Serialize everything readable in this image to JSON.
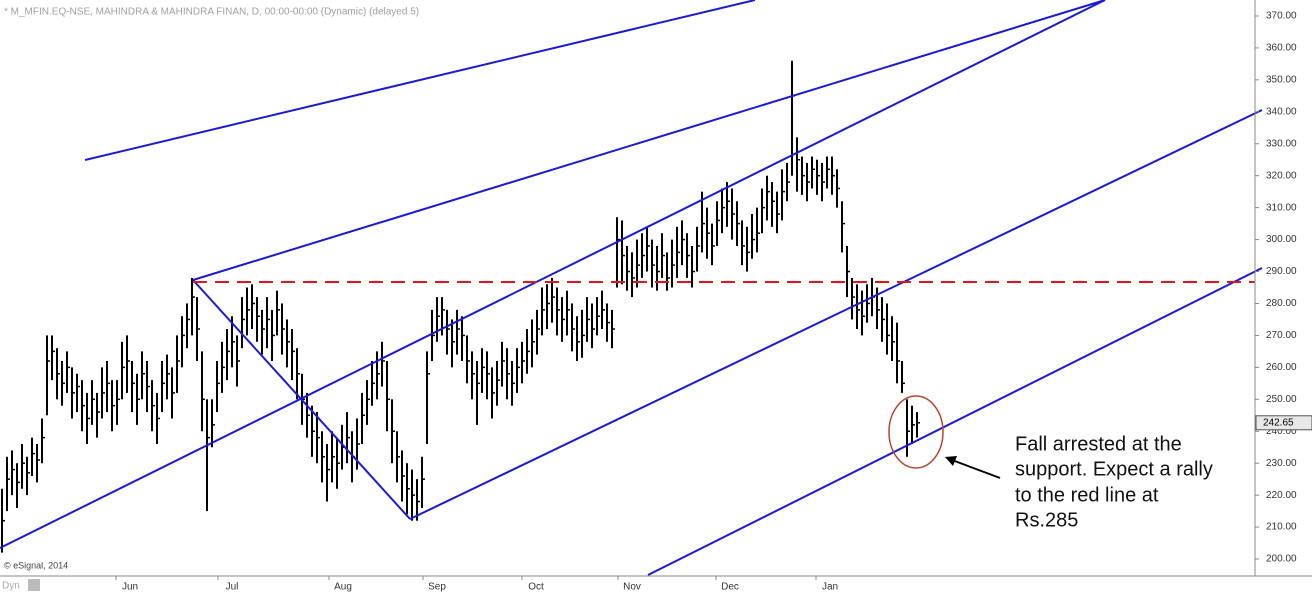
{
  "chart_data": {
    "type": "ohlc",
    "title": "* M_MFIN.EQ-NSE, MAHINDRA & MAHINDRA FINAN, D, 00:00-00:00 (Dynamic) (delayed 5)",
    "ylim": [
      195,
      375
    ],
    "yticks": [
      {
        "value": 200,
        "label": "200.00"
      },
      {
        "value": 210,
        "label": "210.00"
      },
      {
        "value": 220,
        "label": "220.00"
      },
      {
        "value": 230,
        "label": "230.00"
      },
      {
        "value": 240,
        "label": "240.00"
      },
      {
        "value": 250,
        "label": "250.00"
      },
      {
        "value": 260,
        "label": "260.00"
      },
      {
        "value": 270,
        "label": "270.00"
      },
      {
        "value": 280,
        "label": "280.00"
      },
      {
        "value": 290,
        "label": "290.00"
      },
      {
        "value": 300,
        "label": "300.00"
      },
      {
        "value": 310,
        "label": "310.00"
      },
      {
        "value": 320,
        "label": "320.00"
      },
      {
        "value": 330,
        "label": "330.00"
      },
      {
        "value": 340,
        "label": "340.00"
      },
      {
        "value": 350,
        "label": "350.00"
      },
      {
        "value": 360,
        "label": "360.00"
      },
      {
        "value": 370,
        "label": "370.00"
      }
    ],
    "x_labels": [
      "Jun",
      "Jul",
      "Aug",
      "Sep",
      "Oct",
      "Nov",
      "Dec",
      "Jan"
    ],
    "series": [
      {
        "color": "#000000",
        "high": [
          222,
          232,
          234,
          230,
          236,
          232,
          238,
          236,
          244,
          270,
          270,
          266,
          262,
          265,
          260,
          258,
          256,
          252,
          256,
          252,
          260,
          262,
          256,
          256,
          268,
          270,
          262,
          258,
          265,
          262,
          256,
          252,
          262,
          264,
          260,
          270,
          276,
          280,
          288,
          282,
          265,
          250,
          250,
          262,
          268,
          272,
          276,
          270,
          282,
          285,
          286,
          282,
          278,
          282,
          278,
          284,
          280,
          275,
          272,
          266,
          258,
          252,
          248,
          246,
          240,
          236,
          240,
          238,
          242,
          246,
          240,
          244,
          252,
          256,
          262,
          265,
          268,
          262,
          250,
          240,
          234,
          230,
          228,
          225,
          232,
          265,
          278,
          282,
          282,
          278,
          275,
          278,
          276,
          270,
          265,
          262,
          266,
          265,
          260,
          262,
          268,
          266,
          262,
          266,
          268,
          272,
          275,
          278,
          285,
          286,
          288,
          285,
          282,
          284,
          280,
          276,
          278,
          282,
          280,
          282,
          284,
          280,
          278,
          307,
          306,
          298,
          296,
          300,
          302,
          304,
          300,
          298,
          302,
          296,
          300,
          304,
          306,
          302,
          298,
          304,
          315,
          310,
          305,
          312,
          316,
          318,
          316,
          312,
          306,
          304,
          308,
          310,
          316,
          320,
          318,
          315,
          322,
          324,
          356,
          332,
          326,
          324,
          326,
          325,
          324,
          326,
          326,
          322,
          312,
          298,
          288,
          286,
          284,
          286,
          288,
          285,
          282,
          280,
          276,
          274,
          262,
          250,
          248,
          246
        ],
        "low": [
          202,
          215,
          220,
          216,
          222,
          220,
          226,
          224,
          230,
          245,
          256,
          250,
          248,
          252,
          244,
          246,
          240,
          236,
          242,
          238,
          244,
          246,
          240,
          242,
          250,
          252,
          246,
          242,
          250,
          246,
          240,
          236,
          246,
          250,
          244,
          252,
          260,
          266,
          270,
          262,
          240,
          215,
          235,
          246,
          252,
          256,
          260,
          254,
          266,
          270,
          272,
          268,
          264,
          266,
          262,
          270,
          264,
          260,
          256,
          250,
          242,
          238,
          232,
          230,
          224,
          218,
          224,
          222,
          228,
          230,
          224,
          228,
          236,
          242,
          248,
          250,
          254,
          240,
          230,
          224,
          218,
          214,
          212,
          212,
          216,
          236,
          262,
          268,
          270,
          264,
          260,
          264,
          262,
          255,
          250,
          242,
          252,
          250,
          244,
          248,
          254,
          250,
          248,
          252,
          255,
          258,
          260,
          264,
          270,
          272,
          274,
          270,
          268,
          270,
          265,
          262,
          263,
          268,
          266,
          270,
          272,
          268,
          266,
          285,
          286,
          284,
          282,
          285,
          288,
          290,
          285,
          284,
          288,
          284,
          285,
          288,
          292,
          288,
          285,
          290,
          296,
          294,
          292,
          298,
          302,
          304,
          300,
          298,
          292,
          290,
          294,
          296,
          302,
          306,
          304,
          302,
          306,
          312,
          320,
          315,
          314,
          312,
          316,
          314,
          312,
          316,
          314,
          310,
          296,
          282,
          275,
          272,
          270,
          274,
          276,
          272,
          268,
          264,
          262,
          255,
          252,
          232,
          236,
          238
        ],
        "close": [
          212,
          225,
          228,
          224,
          230,
          227,
          233,
          231,
          238,
          262,
          265,
          258,
          255,
          260,
          252,
          254,
          248,
          244,
          250,
          246,
          252,
          255,
          248,
          250,
          260,
          262,
          255,
          250,
          258,
          254,
          248,
          244,
          255,
          258,
          252,
          262,
          270,
          275,
          282,
          272,
          250,
          238,
          242,
          255,
          260,
          265,
          268,
          262,
          275,
          278,
          280,
          276,
          272,
          275,
          270,
          278,
          272,
          268,
          265,
          258,
          250,
          245,
          240,
          238,
          232,
          228,
          232,
          230,
          235,
          238,
          232,
          236,
          245,
          250,
          255,
          258,
          262,
          250,
          240,
          232,
          226,
          222,
          220,
          218,
          225,
          258,
          270,
          276,
          278,
          272,
          268,
          272,
          270,
          262,
          258,
          255,
          260,
          258,
          252,
          256,
          262,
          258,
          255,
          260,
          262,
          265,
          268,
          272,
          278,
          280,
          282,
          278,
          275,
          278,
          272,
          268,
          270,
          275,
          272,
          276,
          278,
          274,
          272,
          300,
          295,
          290,
          288,
          292,
          295,
          298,
          292,
          290,
          295,
          288,
          292,
          296,
          300,
          295,
          290,
          298,
          305,
          302,
          298,
          306,
          310,
          312,
          308,
          305,
          298,
          296,
          300,
          302,
          310,
          315,
          312,
          308,
          315,
          318,
          345,
          325,
          320,
          318,
          322,
          320,
          318,
          322,
          320,
          316,
          305,
          290,
          282,
          278,
          276,
          280,
          282,
          278,
          275,
          270,
          268,
          262,
          255,
          240,
          242,
          242.65
        ]
      }
    ],
    "last_price": 242.65,
    "annotation": [
      "Fall arrested at the",
      "support. Expect a rally",
      "to the red line at",
      "Rs.285"
    ],
    "credit": "© eSignal, 2014",
    "footer": "Dyn"
  }
}
